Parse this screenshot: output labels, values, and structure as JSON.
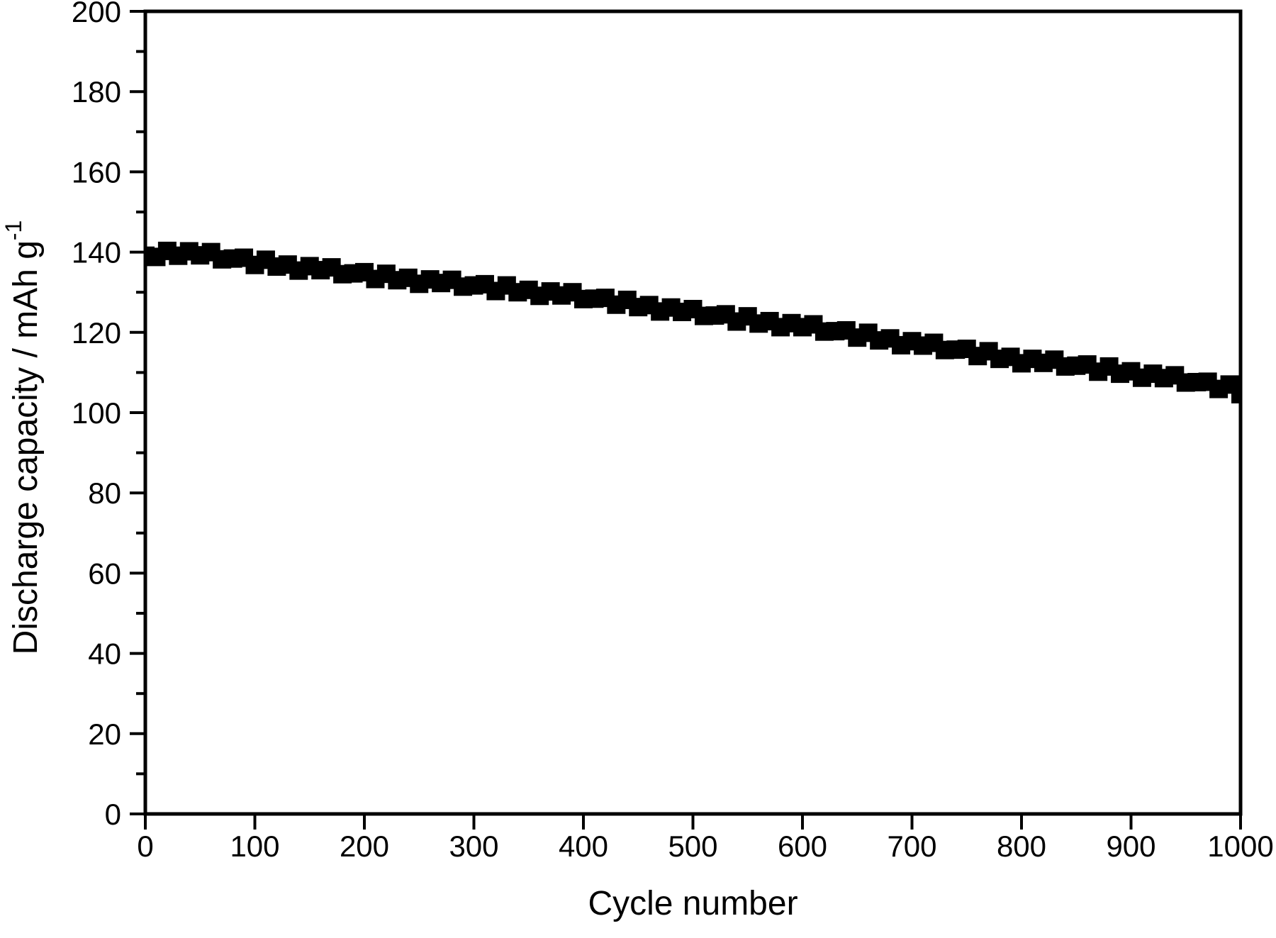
{
  "figure": {
    "background": "#ffffff",
    "foreground": "#000000",
    "title": "",
    "legend": null
  },
  "chart_data": {
    "type": "scatter",
    "title": "",
    "xlabel": "Cycle number",
    "ylabel": "Discharge capacity / mAh g",
    "ylabel_superscript": "-1",
    "xlim": [
      0,
      1000
    ],
    "ylim": [
      0,
      200
    ],
    "grid": false,
    "legend_position": "none",
    "x_major_ticks": [
      0,
      100,
      200,
      300,
      400,
      500,
      600,
      700,
      800,
      900,
      1000
    ],
    "y_major_ticks": [
      0,
      20,
      40,
      60,
      80,
      100,
      120,
      140,
      160,
      180,
      200
    ],
    "y_minor_tick_interval": 10,
    "x_minor_tick_interval": null,
    "marker": {
      "shape": "square",
      "color": "#000000"
    },
    "series": [
      {
        "name": "discharge capacity",
        "x": [
          0,
          10,
          20,
          30,
          40,
          50,
          60,
          70,
          80,
          90,
          100,
          110,
          120,
          130,
          140,
          150,
          160,
          170,
          180,
          190,
          200,
          210,
          220,
          230,
          240,
          250,
          260,
          270,
          280,
          290,
          300,
          310,
          320,
          330,
          340,
          350,
          360,
          370,
          380,
          390,
          400,
          410,
          420,
          430,
          440,
          450,
          460,
          470,
          480,
          490,
          500,
          510,
          520,
          530,
          540,
          550,
          560,
          570,
          580,
          590,
          600,
          610,
          620,
          630,
          640,
          650,
          660,
          670,
          680,
          690,
          700,
          710,
          720,
          730,
          740,
          750,
          760,
          770,
          780,
          790,
          800,
          810,
          820,
          830,
          840,
          850,
          860,
          870,
          880,
          890,
          900,
          910,
          920,
          930,
          940,
          950,
          960,
          970,
          980,
          990,
          1000
        ],
        "y": [
          139.1,
          138.8,
          140.3,
          139.1,
          140.2,
          139.2,
          140.0,
          138.2,
          138.4,
          138.6,
          136.8,
          138.1,
          136.4,
          136.9,
          135.4,
          136.5,
          135.5,
          136.2,
          134.5,
          134.7,
          135.0,
          133.3,
          134.6,
          133.0,
          133.6,
          132.1,
          133.2,
          132.3,
          133.1,
          131.4,
          131.7,
          132.0,
          130.3,
          131.7,
          130.0,
          130.6,
          129.1,
          130.2,
          129.2,
          130.0,
          128.3,
          128.4,
          128.6,
          126.9,
          128.1,
          126.3,
          126.8,
          125.2,
          126.2,
          125.1,
          125.8,
          124.1,
          124.2,
          124.5,
          122.7,
          124.0,
          122.2,
          122.8,
          121.3,
          122.3,
          121.3,
          122.0,
          120.2,
          120.3,
          120.5,
          118.7,
          119.9,
          118.0,
          118.5,
          116.8,
          117.8,
          116.7,
          117.4,
          115.6,
          115.7,
          115.9,
          114.1,
          115.3,
          113.4,
          113.9,
          112.3,
          113.4,
          112.4,
          113.2,
          111.5,
          111.7,
          112.0,
          110.2,
          111.5,
          109.7,
          110.3,
          108.7,
          109.7,
          108.6,
          109.3,
          107.5,
          107.6,
          107.7,
          105.9,
          107.0,
          104.6
        ]
      }
    ]
  }
}
